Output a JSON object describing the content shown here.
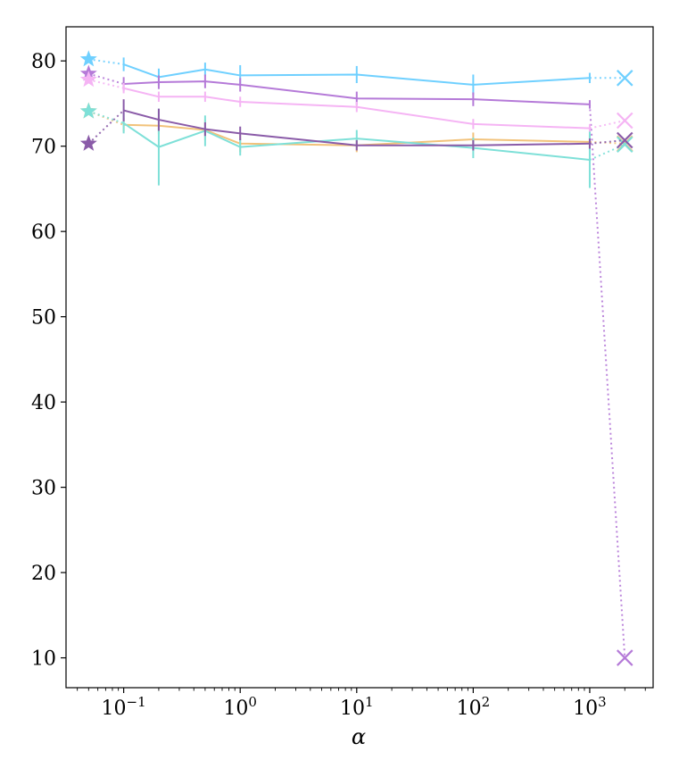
{
  "chart_data": {
    "type": "line",
    "xlabel": "α",
    "ylabel": "",
    "xscale": "log",
    "xlim": [
      0.032,
      3500
    ],
    "ylim": [
      6.5,
      84
    ],
    "grid": false,
    "x_ticks": [
      {
        "value": 0.1,
        "base": "10",
        "exp": "−1"
      },
      {
        "value": 1,
        "base": "10",
        "exp": "0"
      },
      {
        "value": 10,
        "base": "10",
        "exp": "1"
      },
      {
        "value": 100,
        "base": "10",
        "exp": "2"
      },
      {
        "value": 1000,
        "base": "10",
        "exp": "3"
      }
    ],
    "y_ticks": [
      "10",
      "20",
      "30",
      "40",
      "50",
      "60",
      "70",
      "80"
    ],
    "x": [
      0.1,
      0.2,
      0.5,
      1,
      10,
      100,
      1000
    ],
    "star_x": 0.05,
    "cross_x": 2000,
    "series": [
      {
        "color": "#6fd0ff",
        "star": 80.2,
        "cross": 78.0,
        "values": [
          79.6,
          78.1,
          79.0,
          78.3,
          78.4,
          77.2,
          78.0
        ],
        "errors": [
          0.8,
          1.0,
          0.8,
          1.2,
          1.0,
          1.2,
          0.6
        ]
      },
      {
        "color": "#b57ad8",
        "star": 78.5,
        "cross": 10.0,
        "values": [
          77.3,
          77.5,
          77.6,
          77.2,
          75.6,
          75.5,
          74.9
        ],
        "errors": [
          0.8,
          0.8,
          0.8,
          0.8,
          0.8,
          0.8,
          0.5
        ]
      },
      {
        "color": "#f5b4f4",
        "star": 77.8,
        "cross": 73.0,
        "values": [
          76.8,
          75.8,
          75.8,
          75.2,
          74.6,
          72.6,
          72.1
        ],
        "errors": [
          0.6,
          0.6,
          0.6,
          0.6,
          0.6,
          0.6,
          0.5
        ]
      },
      {
        "color": "#f2c27a",
        "star": 74.1,
        "cross": 70.3,
        "values": [
          72.5,
          72.4,
          71.9,
          70.3,
          70.1,
          70.8,
          70.5
        ],
        "errors": [
          0.8,
          1.0,
          1.2,
          1.0,
          0.8,
          0.8,
          0.8
        ]
      },
      {
        "color": "#7ee0d8",
        "star": 74.1,
        "cross": 70.2,
        "values": [
          72.7,
          69.9,
          71.8,
          69.9,
          70.9,
          69.8,
          68.4
        ],
        "errors": [
          1.2,
          4.5,
          1.8,
          1.0,
          1.0,
          1.2,
          3.3
        ]
      },
      {
        "color": "#8a5ba8",
        "star": 70.3,
        "cross": 70.7,
        "values": [
          74.2,
          73.1,
          72.0,
          71.5,
          70.1,
          70.1,
          70.3
        ],
        "errors": [
          1.3,
          1.3,
          0.8,
          0.8,
          0.6,
          0.6,
          0.6
        ]
      }
    ]
  }
}
